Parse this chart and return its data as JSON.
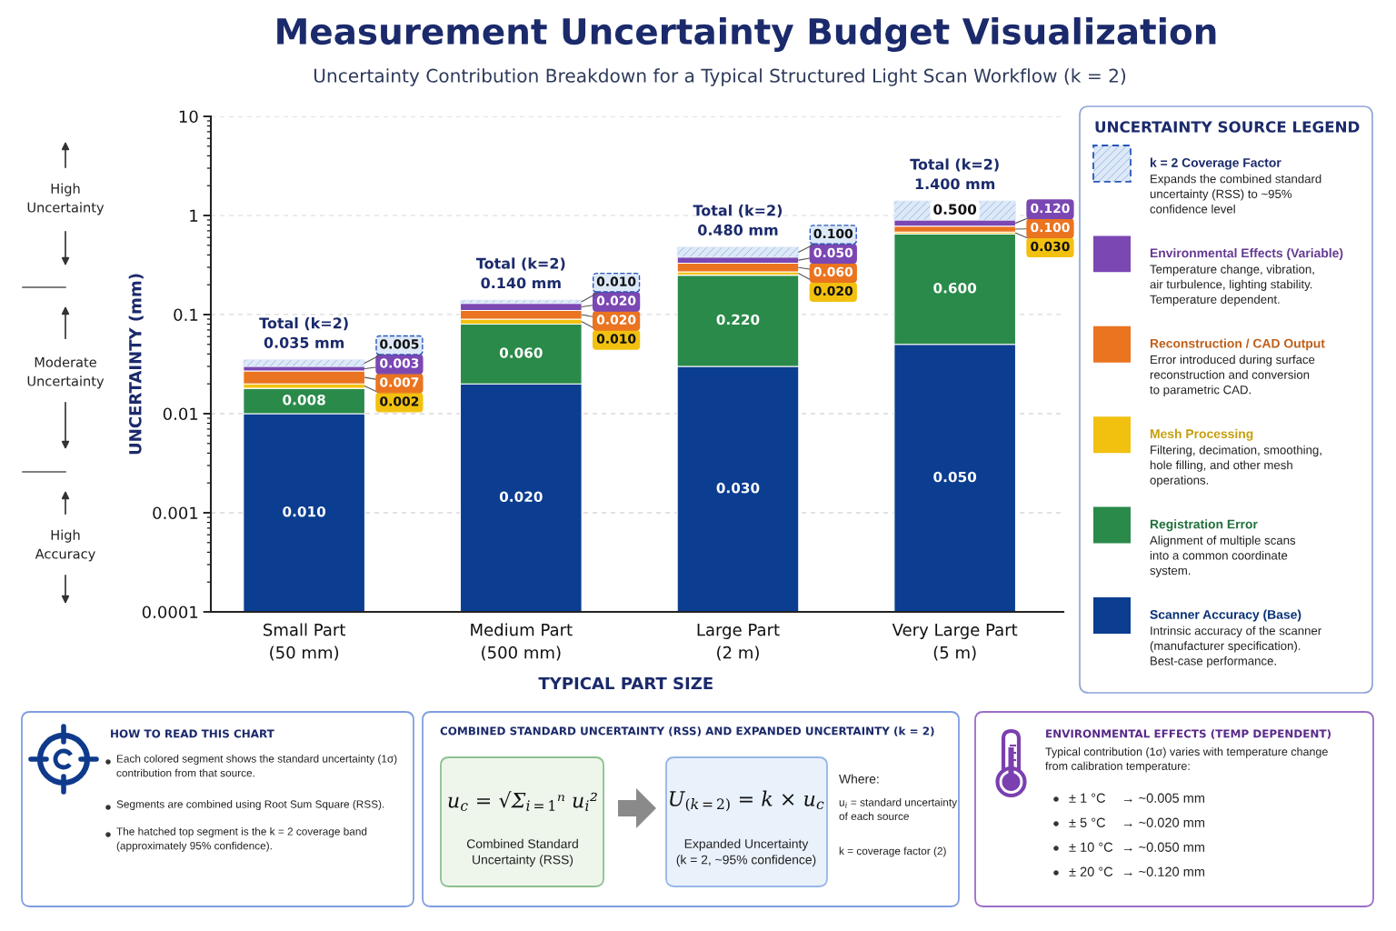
{
  "chart_data": {
    "type": "bar",
    "title": "Measurement Uncertainty Budget Visualization",
    "subtitle": "Uncertainty Contribution Breakdown for a Typical Structured Light Scan Workflow (k = 2)",
    "xlabel": "TYPICAL PART SIZE",
    "ylabel": "UNCERTAINTY (mm)",
    "legend_title": "UNCERTAINTY SOURCE LEGEND",
    "categories": [
      "Small Part\n(50 mm)",
      "Medium Part\n(500 mm)",
      "Large Part\n(2 m)",
      "Very Large Part\n(5 m)"
    ],
    "stacked": true,
    "log": "y",
    "ylim": [
      0.0001,
      10
    ],
    "yticks": [
      0.0001,
      0.001,
      0.01,
      0.1,
      1,
      10
    ],
    "grid": "y",
    "legend": "right",
    "series": [
      {
        "name": "Scanner Accuracy (Base)",
        "color": "#0b3d91",
        "values": [
          0.01,
          0.02,
          0.03,
          0.05
        ],
        "value_labels": [
          "0.010",
          "0.020",
          "0.030",
          "0.050"
        ]
      },
      {
        "name": "Registration Error",
        "color": "#2a8a4a",
        "values": [
          0.008,
          0.06,
          0.22,
          0.6
        ],
        "value_labels": [
          "0.008",
          "0.060",
          "0.220",
          "0.600"
        ]
      },
      {
        "name": "Mesh Processing",
        "color": "#f2c10f",
        "values": [
          0.002,
          0.01,
          0.02,
          0.03
        ],
        "value_labels": [
          "0.002",
          "0.010",
          "0.020",
          "0.030"
        ]
      },
      {
        "name": "Reconstruction / CAD Output",
        "color": "#ea7420",
        "values": [
          0.007,
          0.02,
          0.06,
          0.1
        ],
        "value_labels": [
          "0.007",
          "0.020",
          "0.060",
          "0.100"
        ]
      },
      {
        "name": "Environmental Effects (Variable)",
        "color": "#7b47b3",
        "values": [
          0.003,
          0.02,
          0.05,
          0.12
        ],
        "value_labels": [
          "0.003",
          "0.020",
          "0.050",
          "0.120"
        ]
      },
      {
        "name": "k = 2 Coverage Factor",
        "color": "#dde9f8",
        "values": [
          0.005,
          0.01,
          0.1,
          0.5
        ],
        "value_labels": [
          "0.005",
          "0.010",
          "0.100",
          "0.500"
        ],
        "line_style": "dashed"
      }
    ],
    "totals": [
      "Total (k=2)\n0.035 mm",
      "Total (k=2)\n0.140 mm",
      "Total (k=2)\n0.480 mm",
      "Total (k=2)\n1.400 mm"
    ],
    "annotations": [
      "High\nUncertainty",
      "Moderate\nUncertainty",
      "High\nAccuracy",
      "Expands the combined standard\nuncertainty (RSS) to ~95%\nconfidence level",
      "Temperature change, vibration,\nair turbulence, lighting stability.\nTemperature dependent.",
      "Error introduced during surface\nreconstruction and conversion\nto parametric CAD.",
      "Filtering, decimation, smoothing,\nhole filling, and other mesh\noperations.",
      "Alignment of multiple scans\ninto a common coordinate\nsystem.",
      "Intrinsic accuracy of the scanner\n(manufacturer specification).\nBest-case performance.",
      "HOW TO READ THIS CHART",
      "Each colored segment shows the standard uncertainty (1σ)\ncontribution from that source.",
      "Segments are combined using Root Sum Square (RSS).",
      "The hatched top segment is the k = 2 coverage band\n(approximately 95% confidence).",
      "COMBINED STANDARD UNCERTAINTY (RSS) AND EXPANDED UNCERTAINTY (k = 2)",
      "u$_{c}$ = √Σ$_{i=1}$ⁿ u$_{i}$²",
      "Combined Standard\nUncertainty (RSS)",
      "U$_{(k=2)}$ = k × u$_{c}$",
      "Expanded Uncertainty\n(k = 2, ~95% confidence)",
      "Where:",
      "u$_{i}$ = standard uncertainty\nof each source",
      "k = coverage factor (2)",
      "ENVIRONMENTAL EFFECTS (TEMP DEPENDENT)",
      "Typical contribution (1σ) varies with temperature change\nfrom calibration temperature:",
      "± 1 °C",
      "→ ~0.005 mm",
      "± 5 °C",
      "→ ~0.020 mm",
      "± 10 °C",
      "→ ~0.050 mm",
      "± 20 °C",
      "→ ~0.120 mm"
    ]
  }
}
